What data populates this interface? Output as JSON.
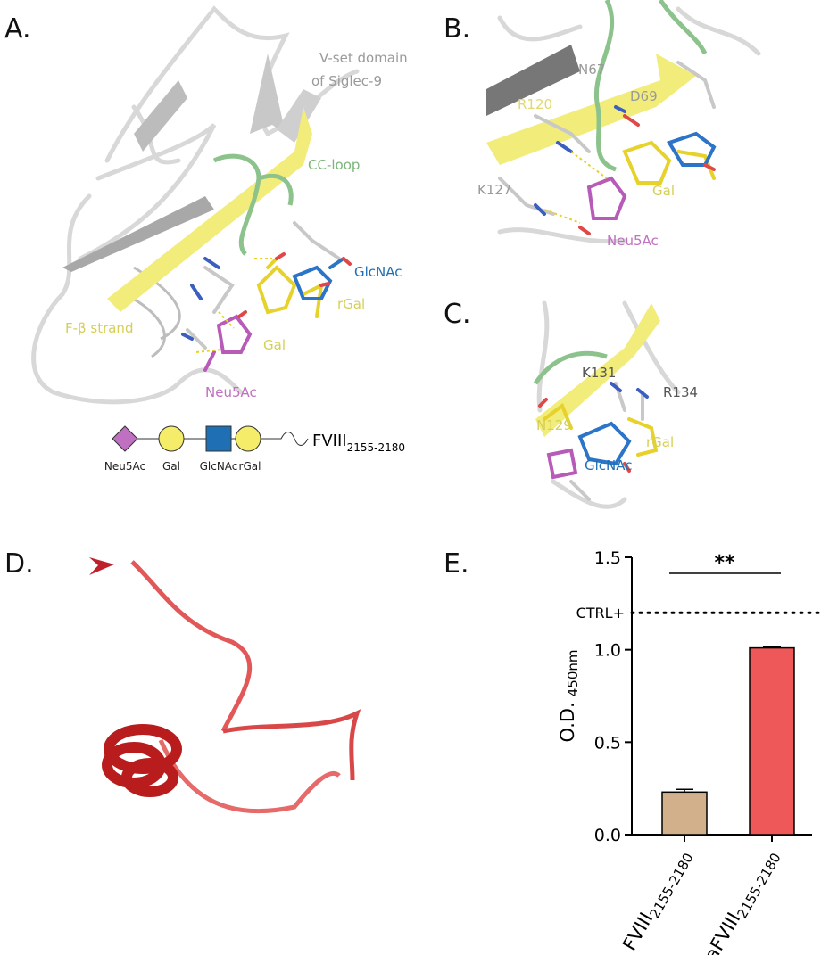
{
  "panels": {
    "a": {
      "label": "A.",
      "annotations": [
        "V-set domain",
        "of Siglec-9",
        "CC-loop",
        "GlcNAc",
        "rGal",
        "F-β strand",
        "Gal",
        "Neu5Ac"
      ],
      "legend": [
        "Neu5Ac",
        "Gal",
        "GlcNAc",
        "rGal"
      ],
      "peptide": "FVIII",
      "peptide_subscript": "2155-2180"
    },
    "b": {
      "label": "B.",
      "annotations": [
        "N67",
        "R120",
        "D69",
        "K127",
        "Gal",
        "Neu5Ac"
      ]
    },
    "c": {
      "label": "C.",
      "annotations": [
        "K131",
        "R134",
        "N129",
        "rGal",
        "GlcNAc"
      ]
    },
    "d": {
      "label": "D."
    },
    "e": {
      "label": "E."
    }
  },
  "chart_data": {
    "type": "bar",
    "y_label": "O.D.",
    "y_label_subscript": "450nm",
    "categories": [
      "FVIII",
      "siaFVIII"
    ],
    "category_subscripts": [
      "2155-2180",
      "2155-2180"
    ],
    "values": [
      0.23,
      1.01
    ],
    "errors": [
      0.015,
      0.005
    ],
    "colors": [
      "#d2b08c",
      "#ee5858"
    ],
    "ylim": [
      0,
      1.5
    ],
    "yticks": [
      {
        "value": 0,
        "label": "0.0"
      },
      {
        "value": 0.5,
        "label": "0.5"
      },
      {
        "value": 1,
        "label": "1.0"
      },
      {
        "value": 1.5,
        "label": "1.5"
      }
    ],
    "reference": {
      "label": "CTRL+",
      "value": 1.2
    },
    "significance": "**"
  }
}
